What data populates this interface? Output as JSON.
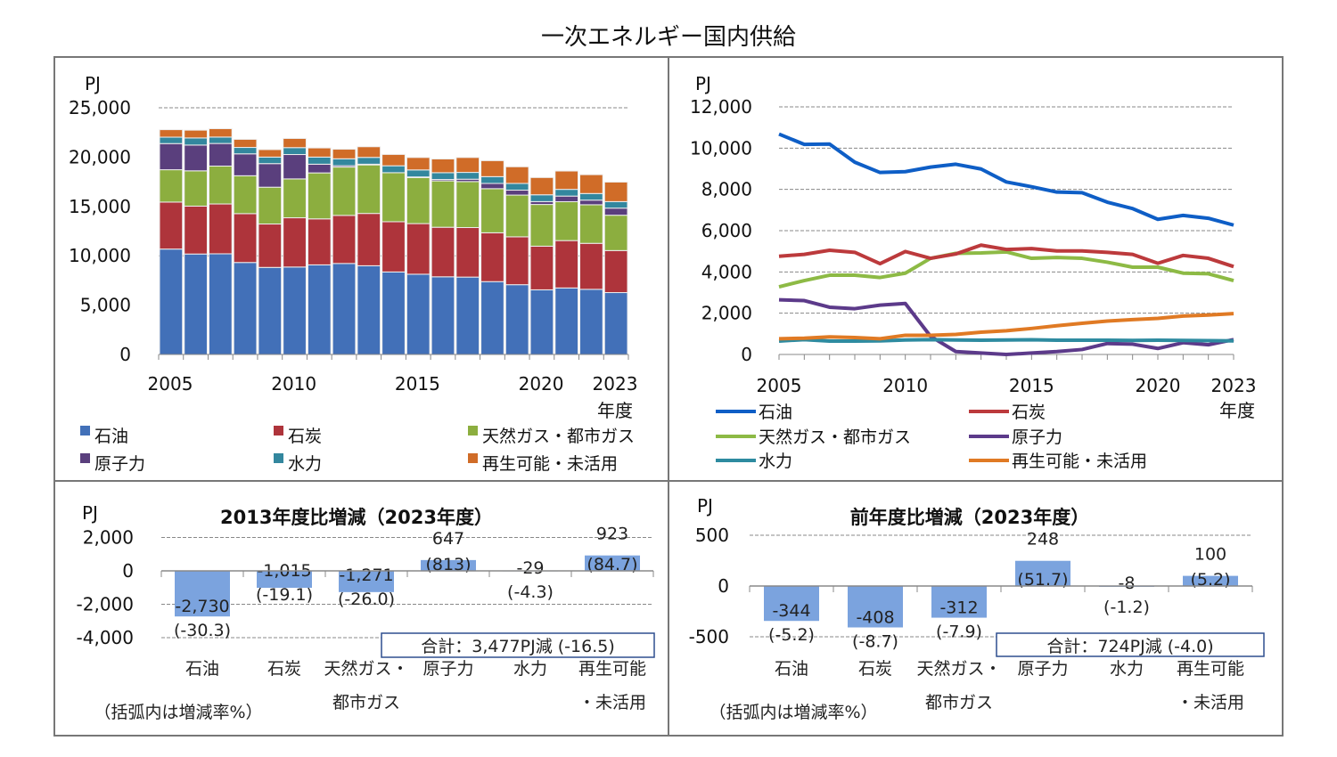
{
  "title": "一次エネルギー国内供給",
  "colors": {
    "bar": {
      "oil": "#4270B8",
      "coal": "#AE343B",
      "gas": "#8CAE3F",
      "nuclear": "#5A3F7D",
      "hydro": "#33879E",
      "renew": "#D06C28"
    },
    "line": {
      "oil": "#0E5EC6",
      "coal": "#BC3A3C",
      "gas": "#8DBA45",
      "nuclear": "#5C3A8A",
      "hydro": "#2E8BA0",
      "renew": "#E07A24"
    },
    "diff_bar": "#7BA3DE"
  },
  "chart_data": [
    {
      "type": "bar",
      "stacked": true,
      "unit_label": "PJ",
      "xlabel": "年度",
      "ylim": [
        0,
        25000
      ],
      "yticks": [
        "0",
        "5,000",
        "10,000",
        "15,000",
        "20,000",
        "25,000"
      ],
      "xticks": [
        "2005",
        "2010",
        "2015",
        "2020",
        "2023"
      ],
      "grid": true,
      "legend": "bottom",
      "categories": [
        2005,
        2006,
        2007,
        2008,
        2009,
        2010,
        2011,
        2012,
        2013,
        2014,
        2015,
        2016,
        2017,
        2018,
        2019,
        2020,
        2021,
        2022,
        2023
      ],
      "series": [
        {
          "key": "oil",
          "name": "石油",
          "values": [
            10680,
            10180,
            10200,
            9320,
            8820,
            8860,
            9080,
            9220,
            8990,
            8360,
            8130,
            7870,
            7840,
            7380,
            7070,
            6550,
            6740,
            6600,
            6270
          ]
        },
        {
          "key": "coal",
          "name": "石炭",
          "values": [
            4760,
            4850,
            5050,
            4950,
            4400,
            4990,
            4660,
            4870,
            5300,
            5090,
            5130,
            5020,
            5020,
            4950,
            4850,
            4420,
            4800,
            4660,
            4260
          ]
        },
        {
          "key": "gas",
          "name": "天然ガス・都市ガス",
          "values": [
            3280,
            3580,
            3840,
            3840,
            3730,
            3940,
            4660,
            4900,
            4920,
            4970,
            4660,
            4700,
            4660,
            4470,
            4230,
            4230,
            3940,
            3910,
            3580
          ]
        },
        {
          "key": "nuclear",
          "name": "原子力",
          "values": [
            2650,
            2610,
            2290,
            2220,
            2390,
            2470,
            880,
            140,
            70,
            0,
            70,
            140,
            240,
            530,
            500,
            290,
            570,
            470,
            720
          ]
        },
        {
          "key": "hydro",
          "name": "水力",
          "values": [
            650,
            720,
            650,
            650,
            660,
            700,
            720,
            700,
            690,
            700,
            710,
            690,
            690,
            690,
            680,
            690,
            680,
            670,
            660
          ]
        },
        {
          "key": "renew",
          "name": "再生可能・未活用",
          "values": [
            760,
            790,
            850,
            820,
            760,
            930,
            930,
            970,
            1080,
            1150,
            1260,
            1390,
            1510,
            1620,
            1690,
            1750,
            1860,
            1910,
            1980
          ]
        }
      ]
    },
    {
      "type": "line",
      "unit_label": "PJ",
      "xlabel": "年度",
      "ylim": [
        0,
        12000
      ],
      "yticks": [
        "0",
        "2,000",
        "4,000",
        "6,000",
        "8,000",
        "10,000",
        "12,000"
      ],
      "xticks": [
        "2005",
        "2010",
        "2015",
        "2020",
        "2023"
      ],
      "grid": true,
      "legend": "bottom",
      "x": [
        2005,
        2006,
        2007,
        2008,
        2009,
        2010,
        2011,
        2012,
        2013,
        2014,
        2015,
        2016,
        2017,
        2018,
        2019,
        2020,
        2021,
        2022,
        2023
      ],
      "series_ref": "same values as stacked bar series"
    },
    {
      "type": "bar",
      "title": "2013年度比増減（2023年度）",
      "unit_label": "PJ",
      "ylim": [
        -4000,
        2000
      ],
      "yticks": [
        "2,000",
        "0",
        "-2,000",
        "-4,000"
      ],
      "grid": true,
      "categories": [
        [
          "石油",
          ""
        ],
        [
          "石炭",
          ""
        ],
        [
          "天然ガス・",
          "都市ガス"
        ],
        [
          "原子力",
          ""
        ],
        [
          "水力",
          ""
        ],
        [
          "再生可能",
          "・未活用"
        ]
      ],
      "values": [
        -2730,
        -1015,
        -1271,
        647,
        -29,
        923
      ],
      "value_labels": [
        "-2,730",
        "-1,015",
        "-1,271",
        "647",
        "-29",
        "923"
      ],
      "pct_labels": [
        "(-30.3)",
        "(-19.1)",
        "(-26.0)",
        "(813)",
        "(-4.3)",
        "(84.7)"
      ],
      "total": "合計：3,477PJ減 (-16.5)",
      "note": "（括弧内は増減率%）"
    },
    {
      "type": "bar",
      "title": "前年度比増減（2023年度）",
      "unit_label": "PJ",
      "ylim": [
        -500,
        500
      ],
      "yticks": [
        "500",
        "0",
        "-500"
      ],
      "grid": true,
      "categories": [
        [
          "石油",
          ""
        ],
        [
          "石炭",
          ""
        ],
        [
          "天然ガス・",
          "都市ガス"
        ],
        [
          "原子力",
          ""
        ],
        [
          "水力",
          ""
        ],
        [
          "再生可能",
          "・未活用"
        ]
      ],
      "values": [
        -344,
        -408,
        -312,
        248,
        -8,
        100
      ],
      "value_labels": [
        "-344",
        "-408",
        "-312",
        "248",
        "-8",
        "100"
      ],
      "pct_labels": [
        "(-5.2)",
        "(-8.7)",
        "(-7.9)",
        "(51.7)",
        "(-1.2)",
        "(5.2)"
      ],
      "total": "合計：724PJ減 (-4.0)",
      "note": "（括弧内は増減率%）"
    }
  ]
}
